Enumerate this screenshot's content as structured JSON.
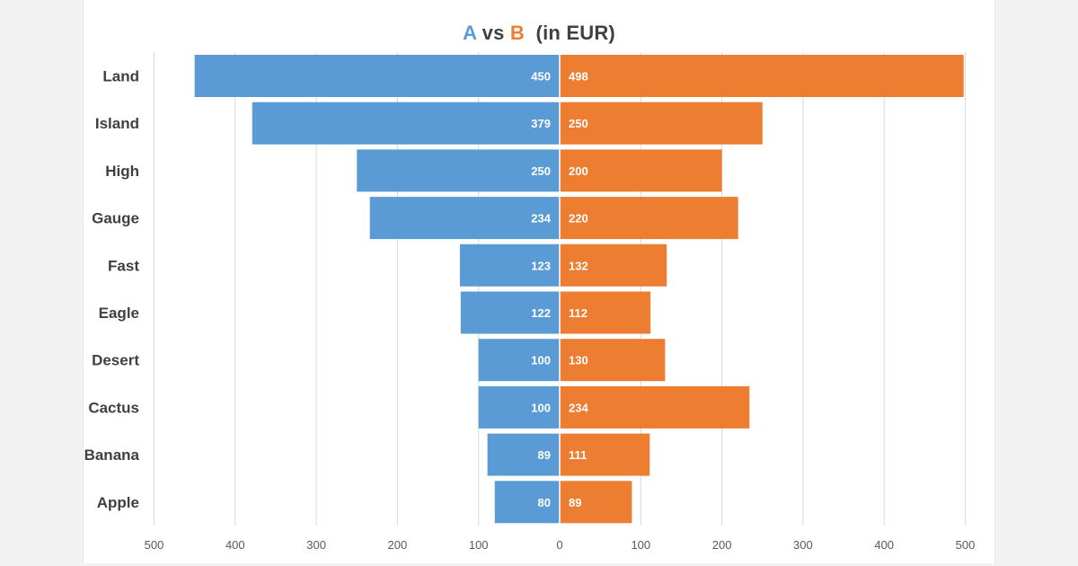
{
  "chart_data": {
    "type": "bar",
    "orientation": "horizontal-diverging",
    "title": {
      "part_a": "A",
      "part_vs": " vs ",
      "part_b": "B",
      "part_unit": "  (in EUR)"
    },
    "categories": [
      "Land",
      "Island",
      "High",
      "Gauge",
      "Fast",
      "Eagle",
      "Desert",
      "Cactus",
      "Banana",
      "Apple"
    ],
    "series": [
      {
        "name": "A",
        "color": "#5b9bd5",
        "values": [
          450,
          379,
          250,
          234,
          123,
          122,
          100,
          100,
          89,
          80
        ]
      },
      {
        "name": "B",
        "color": "#ed7d31",
        "values": [
          498,
          250,
          200,
          220,
          132,
          112,
          130,
          234,
          111,
          89
        ]
      }
    ],
    "xlim": [
      -500,
      500
    ],
    "x_ticks": [
      {
        "value": -500,
        "label": "500"
      },
      {
        "value": -400,
        "label": "400"
      },
      {
        "value": -300,
        "label": "300"
      },
      {
        "value": -200,
        "label": "200"
      },
      {
        "value": -100,
        "label": "100"
      },
      {
        "value": 0,
        "label": "0"
      },
      {
        "value": 100,
        "label": "100"
      },
      {
        "value": 200,
        "label": "200"
      },
      {
        "value": 300,
        "label": "300"
      },
      {
        "value": 400,
        "label": "400"
      },
      {
        "value": 500,
        "label": "500"
      }
    ],
    "grid": true,
    "data_labels": true
  }
}
